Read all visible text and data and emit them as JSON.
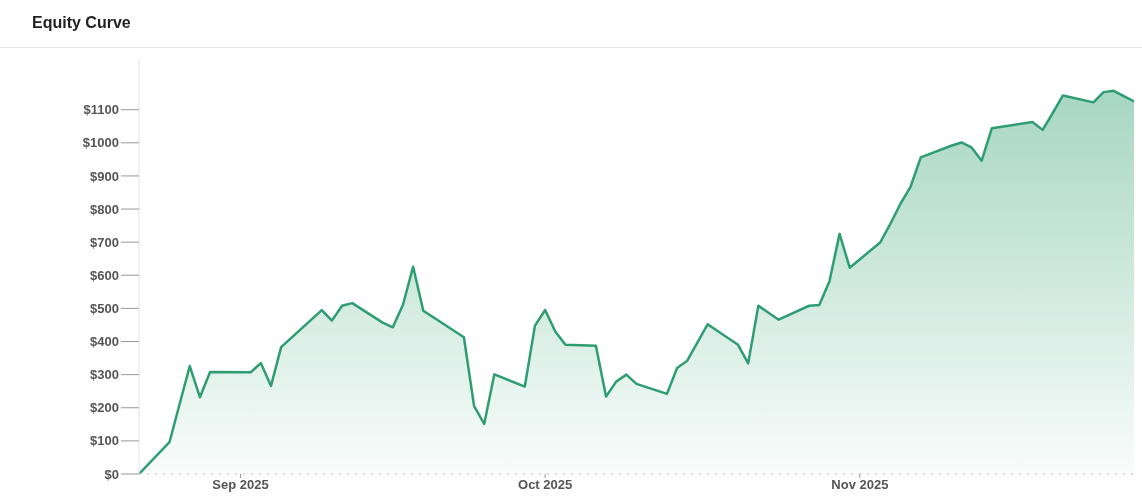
{
  "chart_data": {
    "type": "area",
    "title": "Equity Curve",
    "x": [
      "2025-08-22",
      "2025-08-25",
      "2025-08-27",
      "2025-08-28",
      "2025-08-29",
      "2025-09-02",
      "2025-09-03",
      "2025-09-04",
      "2025-09-05",
      "2025-09-09",
      "2025-09-10",
      "2025-09-11",
      "2025-09-12",
      "2025-09-15",
      "2025-09-16",
      "2025-09-17",
      "2025-09-18",
      "2025-09-19",
      "2025-09-23",
      "2025-09-24",
      "2025-09-25",
      "2025-09-26",
      "2025-09-29",
      "2025-09-30",
      "2025-10-01",
      "2025-10-02",
      "2025-10-03",
      "2025-10-06",
      "2025-10-07",
      "2025-10-08",
      "2025-10-09",
      "2025-10-10",
      "2025-10-13",
      "2025-10-14",
      "2025-10-15",
      "2025-10-17",
      "2025-10-20",
      "2025-10-21",
      "2025-10-22",
      "2025-10-24",
      "2025-10-27",
      "2025-10-28",
      "2025-10-29",
      "2025-10-30",
      "2025-10-31",
      "2025-11-03",
      "2025-11-04",
      "2025-11-05",
      "2025-11-06",
      "2025-11-07",
      "2025-11-10",
      "2025-11-11",
      "2025-11-12",
      "2025-11-13",
      "2025-11-14",
      "2025-11-18",
      "2025-11-19",
      "2025-11-20",
      "2025-11-21",
      "2025-11-24",
      "2025-11-25",
      "2025-11-26",
      "2025-11-28"
    ],
    "series": [
      {
        "color": "#2e9e72",
        "values": [
          0,
          96,
          326,
          232,
          308,
          307,
          335,
          266,
          383,
          495,
          463,
          508,
          516,
          457,
          443,
          511,
          626,
          493,
          413,
          206,
          151,
          301,
          264,
          448,
          495,
          430,
          390,
          387,
          234,
          279,
          300,
          272,
          242,
          320,
          342,
          452,
          390,
          334,
          508,
          466,
          508,
          510,
          581,
          725,
          623,
          699,
          755,
          816,
          868,
          956,
          991,
          1001,
          986,
          946,
          1044,
          1063,
          1039,
          1090,
          1143,
          1122,
          1153,
          1157,
          1125
        ]
      }
    ],
    "xlim": [
      "2025-08-22",
      "2025-11-28"
    ],
    "xticks": [
      {
        "value": "2025-09-01",
        "label": "Sep 2025"
      },
      {
        "value": "2025-10-01",
        "label": "Oct 2025"
      },
      {
        "value": "2025-11-01",
        "label": "Nov 2025"
      }
    ],
    "ylim": [
      0,
      1250
    ],
    "yticks": [
      {
        "value": 0,
        "label": "$0"
      },
      {
        "value": 100,
        "label": "$100"
      },
      {
        "value": 200,
        "label": "$200"
      },
      {
        "value": 300,
        "label": "$300"
      },
      {
        "value": 400,
        "label": "$400"
      },
      {
        "value": 500,
        "label": "$500"
      },
      {
        "value": 600,
        "label": "$600"
      },
      {
        "value": 700,
        "label": "$700"
      },
      {
        "value": 800,
        "label": "$800"
      },
      {
        "value": 900,
        "label": "$900"
      },
      {
        "value": 1000,
        "label": "$1000"
      },
      {
        "value": 1100,
        "label": "$1100"
      }
    ],
    "grid": false,
    "legend": false,
    "marker": "none",
    "line_style": "solid"
  }
}
